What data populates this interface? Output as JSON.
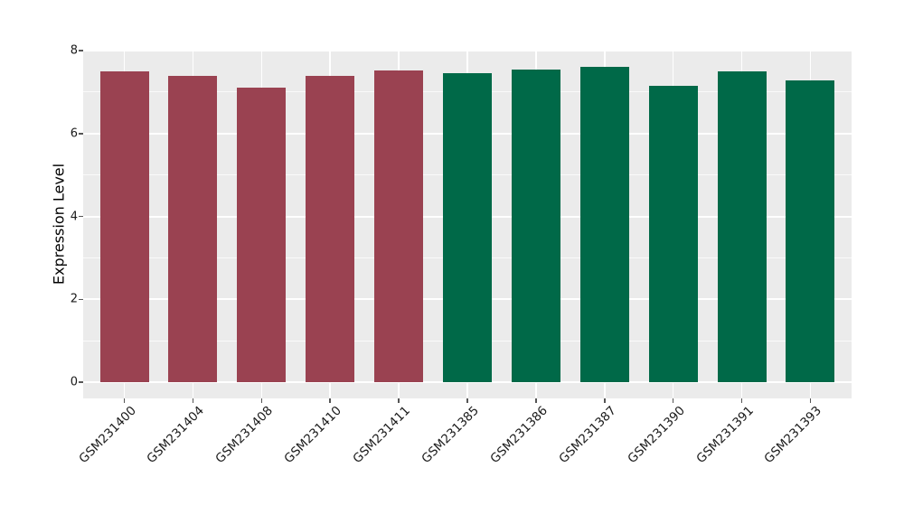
{
  "chart_data": {
    "type": "bar",
    "title": "",
    "xlabel": "",
    "ylabel": "Expression Level",
    "categories": [
      "GSM231400",
      "GSM231404",
      "GSM231408",
      "GSM231410",
      "GSM231411",
      "GSM231385",
      "GSM231386",
      "GSM231387",
      "GSM231390",
      "GSM231391",
      "GSM231393"
    ],
    "values": [
      7.5,
      7.4,
      7.11,
      7.38,
      7.52,
      7.46,
      7.55,
      7.61,
      7.15,
      7.5,
      7.28
    ],
    "bar_colors": [
      "#9A4251",
      "#9A4251",
      "#9A4251",
      "#9A4251",
      "#9A4251",
      "#006948",
      "#006948",
      "#006948",
      "#006948",
      "#006948",
      "#006948"
    ],
    "groups": [
      {
        "name": "maroon-group",
        "color": "#9A4251",
        "categories": [
          "GSM231400",
          "GSM231404",
          "GSM231408",
          "GSM231410",
          "GSM231411"
        ]
      },
      {
        "name": "green-group",
        "color": "#006948",
        "categories": [
          "GSM231385",
          "GSM231386",
          "GSM231387",
          "GSM231390",
          "GSM231391",
          "GSM231393"
        ]
      }
    ],
    "ylim": [
      0,
      8
    ],
    "yticks": [
      "0",
      "2",
      "4",
      "6",
      "8"
    ],
    "minor_yticks": [
      1,
      3,
      5,
      7
    ],
    "grid": true,
    "legend_position": "none",
    "x_tick_rotation_deg": 45,
    "colors": {
      "figure_bg": "#FFFFFF",
      "panel_bg": "#EBEBEB",
      "grid_major": "#FFFFFF",
      "grid_minor": "#FFFFFF",
      "tick": "#555555",
      "text": "#1A1A1A"
    }
  }
}
